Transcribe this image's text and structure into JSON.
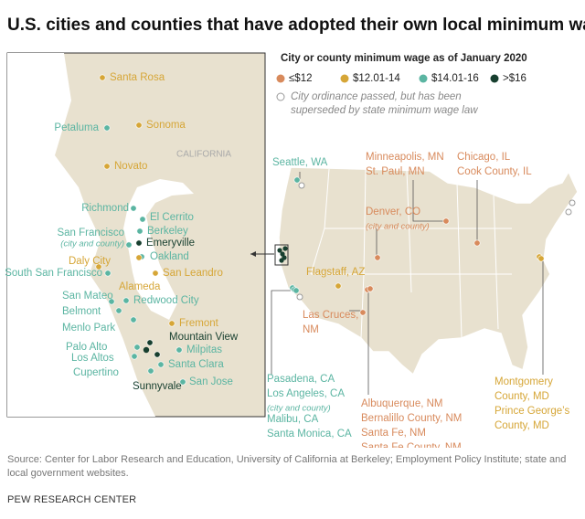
{
  "title": "U.S. cities and counties that have adopted their own local minimum wage laws",
  "legend": {
    "title": "City or county minimum wage as of January 2020",
    "items": [
      {
        "label": "≤$12",
        "color": "#d88a5c"
      },
      {
        "label": "$12.01-14",
        "color": "#d6a637"
      },
      {
        "label": "$14.01-16",
        "color": "#5bb5a2"
      },
      {
        "label": ">$16",
        "color": "#173f2f"
      }
    ],
    "note": [
      "City ordinance passed, but has been",
      "superseded by state minimum wage law"
    ]
  },
  "inset": {
    "region": "CALIFORNIA",
    "places": [
      {
        "name": "Santa Rosa",
        "color": "#d6a637"
      },
      {
        "name": "Petaluma",
        "color": "#5bb5a2"
      },
      {
        "name": "Sonoma",
        "color": "#d6a637"
      },
      {
        "name": "Novato",
        "color": "#d6a637"
      },
      {
        "name": "Richmond",
        "color": "#5bb5a2"
      },
      {
        "name": "El Cerrito",
        "color": "#5bb5a2"
      },
      {
        "name": "Berkeley",
        "color": "#5bb5a2"
      },
      {
        "name": "San Francisco",
        "note": "(city and county)",
        "color": "#5bb5a2"
      },
      {
        "name": "Emeryville",
        "color": "#173f2f"
      },
      {
        "name": "Oakland",
        "color": "#5bb5a2"
      },
      {
        "name": "Daly City",
        "color": "#d6a637"
      },
      {
        "name": "South San Francisco",
        "color": "#5bb5a2"
      },
      {
        "name": "San Leandro",
        "color": "#d6a637"
      },
      {
        "name": "Alameda",
        "color": "#d6a637"
      },
      {
        "name": "San Mateo",
        "color": "#5bb5a2"
      },
      {
        "name": "Redwood City",
        "color": "#5bb5a2"
      },
      {
        "name": "Belmont",
        "color": "#5bb5a2"
      },
      {
        "name": "Menlo Park",
        "color": "#5bb5a2"
      },
      {
        "name": "Fremont",
        "color": "#d6a637"
      },
      {
        "name": "Mountain View",
        "color": "#173f2f"
      },
      {
        "name": "Palo Alto",
        "color": "#5bb5a2"
      },
      {
        "name": "Milpitas",
        "color": "#5bb5a2"
      },
      {
        "name": "Los Altos",
        "color": "#5bb5a2"
      },
      {
        "name": "Santa Clara",
        "color": "#5bb5a2"
      },
      {
        "name": "Cupertino",
        "color": "#5bb5a2"
      },
      {
        "name": "San Jose",
        "color": "#5bb5a2"
      },
      {
        "name": "Sunnyvale",
        "color": "#173f2f"
      }
    ]
  },
  "map": {
    "places": [
      {
        "lines": [
          "Seattle, WA"
        ],
        "color": "#5bb5a2"
      },
      {
        "lines": [
          "Minneapolis, MN",
          "St. Paul, MN"
        ],
        "color": "#d88a5c"
      },
      {
        "lines": [
          "Chicago, IL",
          "Cook County, IL"
        ],
        "color": "#d88a5c"
      },
      {
        "lines": [
          "Denver, CO",
          "(city and county)"
        ],
        "color": "#d88a5c"
      },
      {
        "lines": [
          "Flagstaff, AZ"
        ],
        "color": "#d6a637"
      },
      {
        "lines": [
          "Las Cruces,",
          "NM"
        ],
        "color": "#d88a5c"
      },
      {
        "lines": [
          "Pasadena, CA",
          "Los Angeles, CA",
          "(city and county)",
          "Malibu, CA",
          "Santa Monica, CA"
        ],
        "color": "#5bb5a2"
      },
      {
        "lines": [
          "Albuquerque, NM",
          "Bernalillo County, NM",
          "Santa Fe, NM",
          "Santa Fe County, NM"
        ],
        "color": "#d88a5c"
      },
      {
        "lines": [
          "Montgomery",
          "County, MD",
          "Prince George’s",
          "County, MD"
        ],
        "color": "#d6a637"
      }
    ]
  },
  "source": "Source: Center for Labor Research and Education, University of California at Berkeley; Employment Policy Institute; state and local government websites.",
  "footer": "PEW RESEARCH CENTER"
}
